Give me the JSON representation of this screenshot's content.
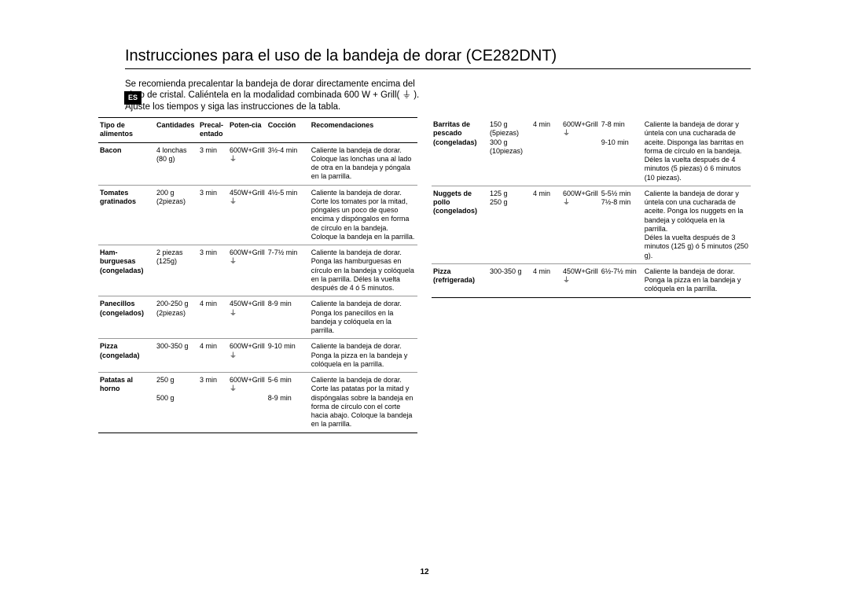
{
  "lang_tag": "ES",
  "title": "Instrucciones para el uso de la bandeja de dorar (CE282DNT)",
  "intro": "Se recomienda precalentar la bandeja de dorar directamente encima del plato de cristal. Caliéntela en la modalidad combinada 600 W + Grill( ⏚ ). Ajuste los tiempos y siga las instrucciones de la tabla.",
  "headers": {
    "food": "Tipo de alimentos",
    "qty": "Cantidades",
    "pre": "Precal-entado",
    "pow": "Poten-cia",
    "cook": "Cocción",
    "rec": "Recomendaciones"
  },
  "left_rows": [
    {
      "food": "Bacon",
      "qty": "4 lonchas (80 g)",
      "pre": "3 min",
      "pow": "600W+Grill\n⏚",
      "cook": "3½-4 min",
      "rec": "Caliente la bandeja de dorar. Coloque las lonchas una al lado de otra en la bandeja y póngala en la parrilla."
    },
    {
      "food": "Tomates gratinados",
      "qty": "200 g (2piezas)",
      "pre": "3 min",
      "pow": "450W+Grill\n⏚",
      "cook": "4½-5 min",
      "rec": "Caliente la bandeja de dorar. Corte los tomates por la mitad, póngales un poco de queso encima y dispóngalos en forma de círculo en la bandeja. Coloque la bandeja en la parrilla."
    },
    {
      "food": "Ham-burguesas (congeladas)",
      "qty": "2 piezas (125g)",
      "pre": "3 min",
      "pow": "600W+Grill\n⏚",
      "cook": "7-7½ min",
      "rec": "Caliente la bandeja de dorar. Ponga las hamburguesas en círculo en la bandeja y colóquela en la parrilla. Déles la vuelta después de 4 ó 5 minutos."
    },
    {
      "food": "Panecillos (congelados)",
      "qty": "200-250 g (2piezas)",
      "pre": "4 min",
      "pow": "450W+Grill\n⏚",
      "cook": "8-9 min",
      "rec": "Caliente la bandeja de dorar. Ponga los panecillos en la bandeja y colóquela en la parrilla."
    },
    {
      "food": "Pizza (congelada)",
      "qty": "300-350 g",
      "pre": "4 min",
      "pow": "600W+Grill\n⏚",
      "cook": "9-10 min",
      "rec": "Caliente la bandeja de dorar. Ponga la pizza en la bandeja y colóquela en la parrilla."
    },
    {
      "food": "Patatas al horno",
      "qty": "250 g\n\n500 g",
      "pre": "3 min",
      "pow": "600W+Grill\n⏚",
      "cook": "5-6 min\n\n8-9 min",
      "rec": "Caliente la bandeja de dorar. Corte las patatas por la mitad y dispóngalas sobre la bandeja en forma de círculo con el corte hacia abajo. Coloque la bandeja en la parrilla."
    }
  ],
  "right_rows": [
    {
      "food": "Barritas de pescado (congeladas)",
      "qty": "150 g (5piezas)\n300 g (10piezas)",
      "pre": "4 min",
      "pow": "600W+Grill\n⏚",
      "cook": "7-8 min\n\n9-10 min",
      "rec": "Caliente la bandeja de dorar y úntela con una cucharada de aceite. Disponga las barritas en forma de círculo en la bandeja. Déles la vuelta después de 4 minutos (5 piezas) ó 6 minutos (10 piezas)."
    },
    {
      "food": "Nuggets de pollo (congelados)",
      "qty": "125 g\n250 g",
      "pre": "4 min",
      "pow": "600W+Grill\n⏚",
      "cook": "5-5½  min\n7½-8 min",
      "rec": "Caliente la bandeja de dorar y úntela con una cucharada de aceite. Ponga los nuggets en la bandeja y colóquela en la parrilla.\nDéles la vuelta después de 3 minutos (125 g) ó 5 minutos (250 g)."
    },
    {
      "food": "Pizza (refrigerada)",
      "qty": "300-350 g",
      "pre": "4 min",
      "pow": "450W+Grill\n⏚",
      "cook": "6½-7½ min",
      "rec": "Caliente la bandeja de dorar. Ponga la pizza en la bandeja y colóquela en la parrilla."
    }
  ],
  "page_number": "12"
}
